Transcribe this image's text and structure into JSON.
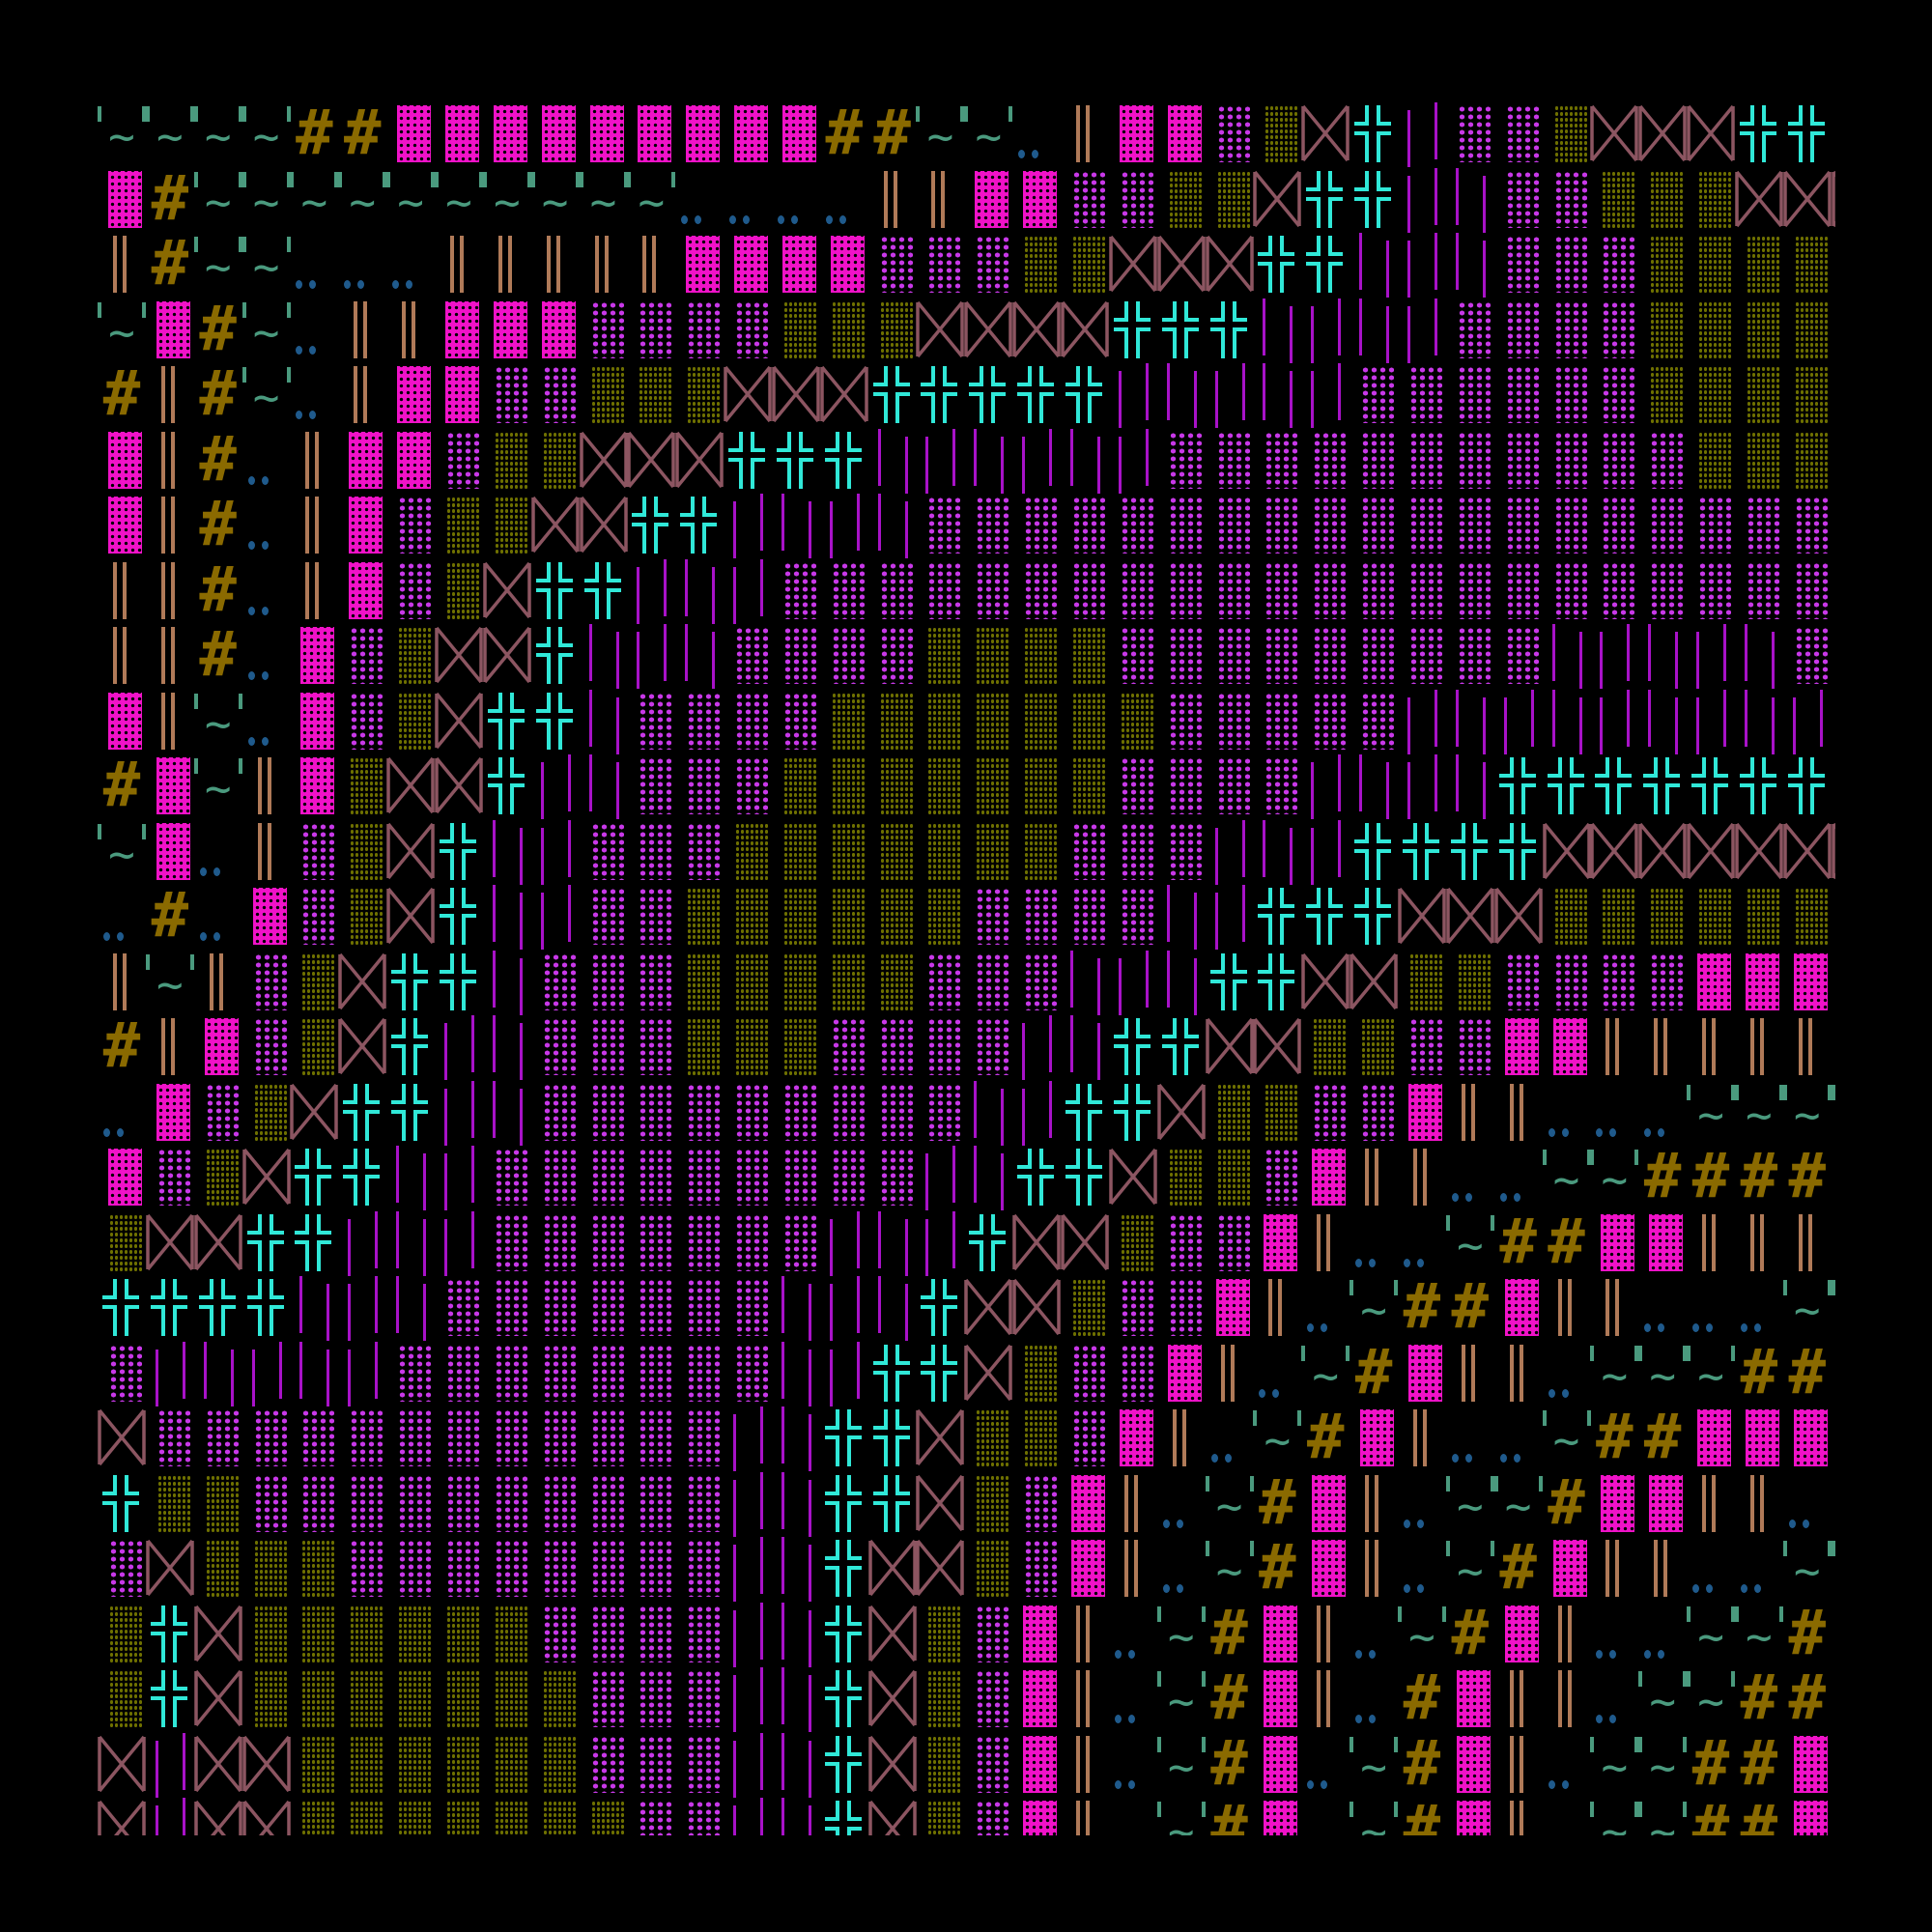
{
  "colors": {
    "background": "#000000",
    "pink_block": "#f012c8",
    "hash": "#8a6a00",
    "tilde": "#4a9a7e",
    "double_bar": "#b07a58",
    "dots": "#1f5a8c",
    "magenta_dots": "#c838e8",
    "olive_dots": "#6e7000",
    "bowtie": "#8c5561",
    "cross": "#30e8d8",
    "purple_bars": "#a812c8"
  },
  "grid": {
    "legend": {
      " ": "blank",
      ".": "double-dot",
      "~": "quote-tilde",
      "#": "hash",
      "B": "pink-block",
      "H": "double-bar",
      "m": "magenta-dots",
      "o": "olive-dots",
      "X": "bowtie",
      "+": "double-cross",
      "|": "purple-bars"
    },
    "rows": [
      "~~~~##BBBBBBBBB##~~.HBBmoX+|mmoXXX+++",
      "B#~~~~~~~~~~....HHBBmmooX++||mmoooXXX",
      "H#~~...HHHHHBBBBmmmooXXX++|||mmmooooo",
      "~B#~.HHBBBmmmmoooXXXX+++||||mmmmooooo",
      "#H#~.HBBmmoooXXX+++++|||||mmmmmmooooo",
      "BH#.HBBmooXXX+++||||||mmmmmmmmmmmoooo",
      "BH#.HBmooXX++||||mmmmmmmmmmmmmmmmmmmo",
      "HH#.HBmoX++|||mmmmmmmmmmmmmmmmmmmmmmm",
      "HH#.BmoXX+|||mmmmoooommmmmmmmm|||||mm",
      "BH~.BmoX++|mmmmooooooommmmm||||||||||",
      "#B~HBoXX+||mmmooooooommmm||||++++++++",
      "~B.HmoX+||mmmooooooommm|||++++XXXXXXX",
      ".#.BmoX+||mmoooooommmm||+++XXXooooooo",
      "H~HmoX++|mmmooooommm|||++XXoommmmBBBB",
      "#HBmoX+||mmmooommmm||++XXoommBBHHHHH ",
      ".BmoX++||mmmmmmmmm||++XoommBHH...~~~~",
      "BmoX++||mmmmmmmmm||++XoomBHH..~~#####",
      "oXX++|||mmmmmmm|||+XXommBH..~##BBHHH ",
      "++++|||mmmmmmm|||+XXommBH.~##BHH...~~",
      "m|||||mmmmmmmm||++XommBH.~#BHH.~~~###",
      "Xmmmmmmmmmmmm||++XoomBH.~#BH..~##BBB ",
      "+oommmmmmmmmm||++XomBH.~#BH.~~#BBHH..",
      "mXooommmmmmmm||+XXomBH.~#BH.~#BHH..~~",
      "o+Xoooooommmm||+XomBH.~#BH.~#BH..~~##",
      "o+Xooooooommm||+XomBH.~#BH.#BHH.~~###",
      "X|XXoooooommm||+XomBH.~#B.~#BH.~~##BB",
      "X|XXooooooomm||+XomBH.~#B.~#BH.~~##BB"
    ]
  }
}
